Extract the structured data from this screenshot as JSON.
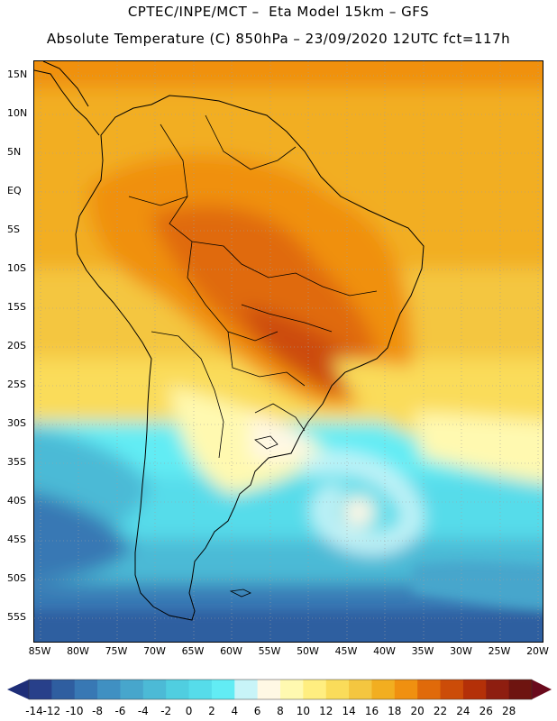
{
  "header": {
    "line1": "CPTEC/INPE/MCT –  Eta Model 15km – GFS",
    "line2": "Absolute Temperature (C) 850hPa – 23/09/2020 12UTC fct=117h"
  },
  "map": {
    "lat_labels": [
      "15N",
      "10N",
      "5N",
      "EQ",
      "5S",
      "10S",
      "15S",
      "20S",
      "25S",
      "30S",
      "35S",
      "40S",
      "45S",
      "50S",
      "55S"
    ],
    "lon_labels": [
      "85W",
      "80W",
      "75W",
      "70W",
      "65W",
      "60W",
      "55W",
      "50W",
      "45W",
      "40W",
      "35W",
      "30W",
      "25W",
      "20W"
    ]
  },
  "colorbar": {
    "labels": [
      "-14",
      "-12",
      "-10",
      "-8",
      "-6",
      "-4",
      "-2",
      "0",
      "2",
      "4",
      "6",
      "8",
      "10",
      "12",
      "14",
      "16",
      "18",
      "20",
      "22",
      "24",
      "26",
      "28"
    ],
    "colors": [
      "#28408a",
      "#2f5ea0",
      "#3878b4",
      "#4090c2",
      "#47a6cc",
      "#4cbad6",
      "#50cee0",
      "#56dcea",
      "#62ecf4",
      "#c8f4f8",
      "#fff8e4",
      "#fff9b0",
      "#ffee80",
      "#fadc5a",
      "#f4c640",
      "#f2ae20",
      "#f09010",
      "#e06a0a",
      "#cc4c08",
      "#b43008",
      "#8e1e10",
      "#6e1410"
    ],
    "arrow_left_color": "#1e2e78",
    "arrow_right_color": "#6a0a1c"
  }
}
